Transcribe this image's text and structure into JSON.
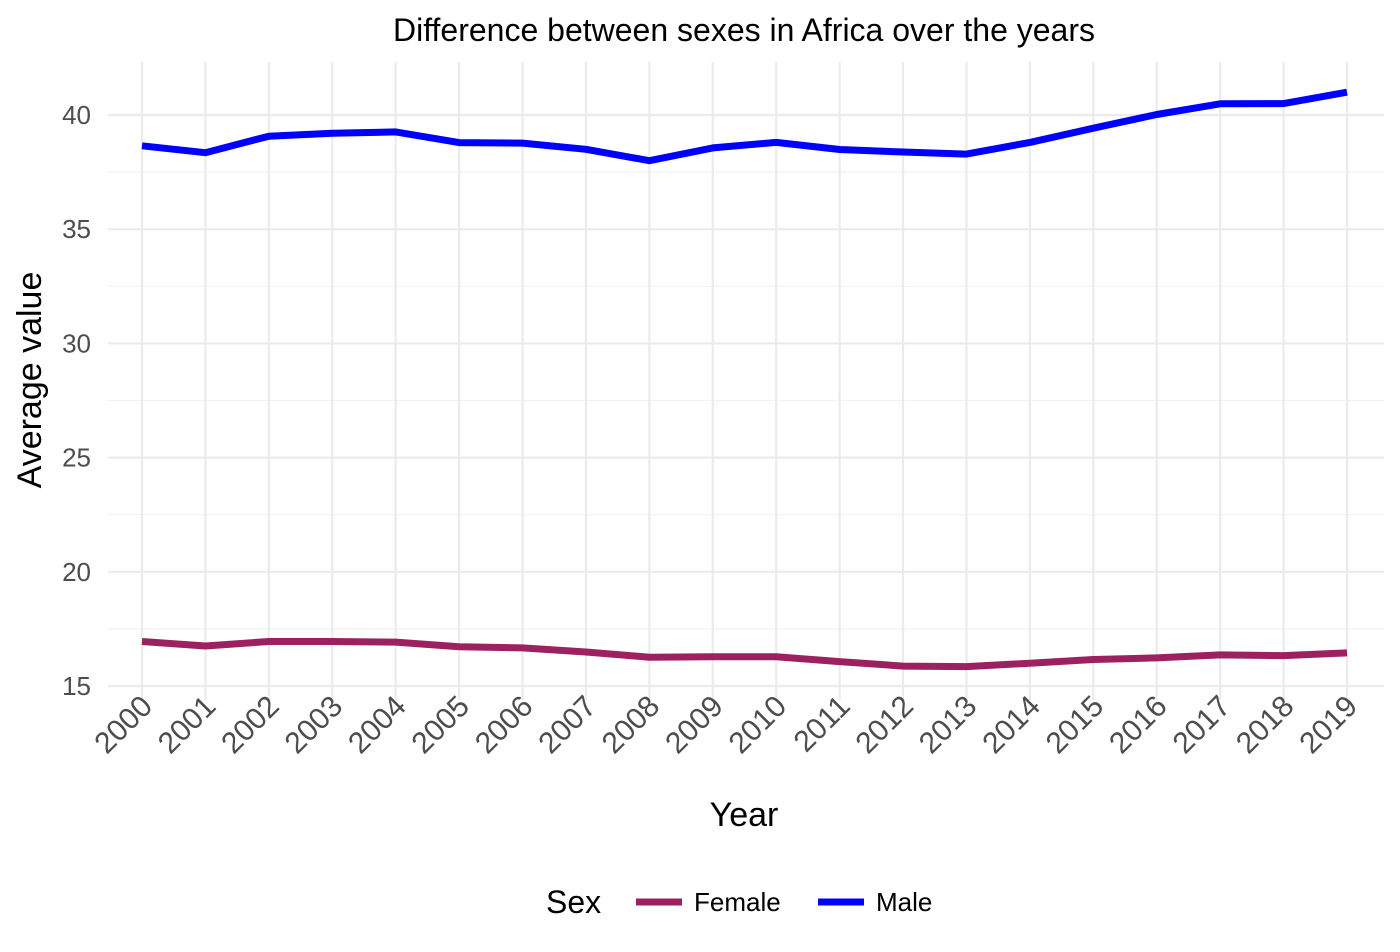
{
  "chart_data": {
    "type": "line",
    "title": "Difference between sexes in Africa over the years",
    "xlabel": "Year",
    "ylabel": "Average value",
    "x": [
      "2000",
      "2001",
      "2002",
      "2003",
      "2004",
      "2005",
      "2006",
      "2007",
      "2008",
      "2009",
      "2010",
      "2011",
      "2012",
      "2013",
      "2014",
      "2015",
      "2016",
      "2017",
      "2018",
      "2019"
    ],
    "y_ticks": [
      "15",
      "20",
      "25",
      "30",
      "35",
      "40"
    ],
    "ylim": [
      15,
      42
    ],
    "grid": true,
    "legend": {
      "title": "Sex",
      "position": "bottom"
    },
    "series": [
      {
        "name": "Female",
        "color": "#9c2160",
        "values": [
          16.95,
          16.75,
          16.95,
          16.95,
          16.92,
          16.72,
          16.67,
          16.49,
          16.26,
          16.28,
          16.28,
          16.07,
          15.87,
          15.85,
          16.0,
          16.16,
          16.23,
          16.36,
          16.33,
          16.45
        ]
      },
      {
        "name": "Male",
        "color": "#0000ff",
        "values": [
          38.65,
          38.35,
          39.07,
          39.2,
          39.26,
          38.79,
          38.77,
          38.5,
          38.0,
          38.56,
          38.8,
          38.49,
          38.38,
          38.29,
          38.8,
          39.42,
          40.02,
          40.49,
          40.5,
          41.0
        ]
      }
    ]
  }
}
